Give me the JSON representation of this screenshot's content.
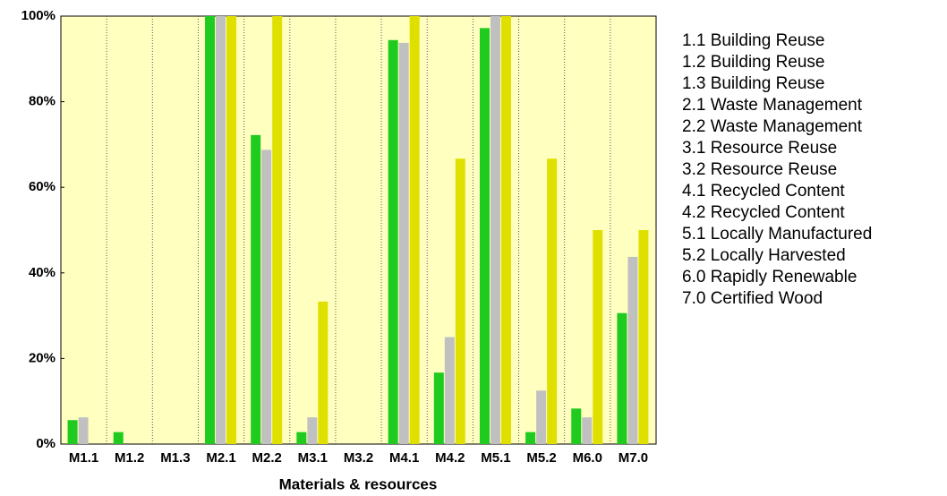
{
  "chart_data": {
    "type": "bar",
    "x_label": "Materials & resources",
    "categories": [
      "M1.1",
      "M1.2",
      "M1.3",
      "M2.1",
      "M2.2",
      "M3.1",
      "M3.2",
      "M4.1",
      "M4.2",
      "M5.1",
      "M5.2",
      "M6.0",
      "M7.0"
    ],
    "series": [
      {
        "color": "#1ecb1e",
        "values": [
          5.6,
          2.8,
          0,
          100,
          72.2,
          2.8,
          0,
          94.4,
          16.7,
          97.2,
          2.8,
          8.3,
          30.6
        ]
      },
      {
        "color": "#c0c0c0",
        "values": [
          6.25,
          0,
          0,
          100,
          68.75,
          6.25,
          0,
          93.75,
          25,
          100,
          12.5,
          6.25,
          43.75
        ]
      },
      {
        "color": "#e0e000",
        "values": [
          0,
          0,
          0,
          100,
          100,
          33.3,
          0,
          100,
          66.7,
          100,
          66.7,
          50,
          50
        ]
      }
    ],
    "ylim": [
      0,
      100
    ],
    "yticks": [
      {
        "value": 0,
        "label": "0%"
      },
      {
        "value": 20,
        "label": "20%"
      },
      {
        "value": 40,
        "label": "40%"
      },
      {
        "value": 60,
        "label": "60%"
      },
      {
        "value": 80,
        "label": "80%"
      },
      {
        "value": 100,
        "label": "100%"
      }
    ],
    "grid": false,
    "category_descriptions": [
      "1.1 Building Reuse",
      "1.2 Building Reuse",
      "1.3 Building Reuse",
      "2.1 Waste Management",
      "2.2 Waste Management",
      "3.1 Resource Reuse",
      "3.2 Resource Reuse",
      "4.1 Recycled Content",
      "4.2 Recycled Content",
      "5.1 Locally Manufactured",
      "5.2 Locally Harvested",
      "6.0 Rapidly Renewable",
      "7.0 Certified Wood"
    ]
  }
}
